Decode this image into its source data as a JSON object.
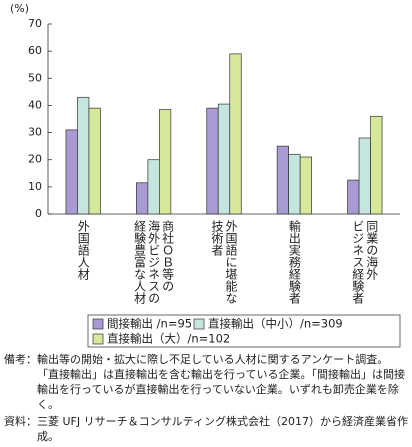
{
  "chart_data": {
    "type": "bar",
    "y_label": "(%)",
    "categories": [
      "外国語人材",
      "商社ＯＢ等の\n海外ビジネスの\n経験豊富な人材",
      "外国語に堪能な\n技術者",
      "輸出実務経験者",
      "同業の海外\nビジネス経験者"
    ],
    "series": [
      {
        "name": "間接輸出 /n=95",
        "color": "#a99bd1",
        "values": [
          31,
          11.5,
          39,
          25,
          12.5
        ]
      },
      {
        "name": "直接輸出（中小）/n=309",
        "color": "#c4e6df",
        "values": [
          43,
          20,
          40.5,
          22,
          28
        ]
      },
      {
        "name": "直接輸出（大）/n=102",
        "color": "#d6e89a",
        "values": [
          39,
          38.5,
          59,
          21,
          36
        ]
      }
    ],
    "ylim": [
      0,
      70
    ],
    "yticks": [
      0,
      10,
      20,
      30,
      40,
      50,
      60,
      70
    ]
  },
  "notes": {
    "label": "備考：",
    "text": "輸出等の開始・拡大に際し不足している人材に関するアンケート調査。\n「直接輸出」は直接輸出を含む輸出を行っている企業。「間接輸出」は間接輸出を行っているが直接輸出を行っていない企業。いずれも卸売企業を除く。"
  },
  "source": {
    "label": "資料：",
    "text": "三菱 UFJ リサーチ＆コンサルティング株式会社（2017）から経済産業省作成。"
  }
}
